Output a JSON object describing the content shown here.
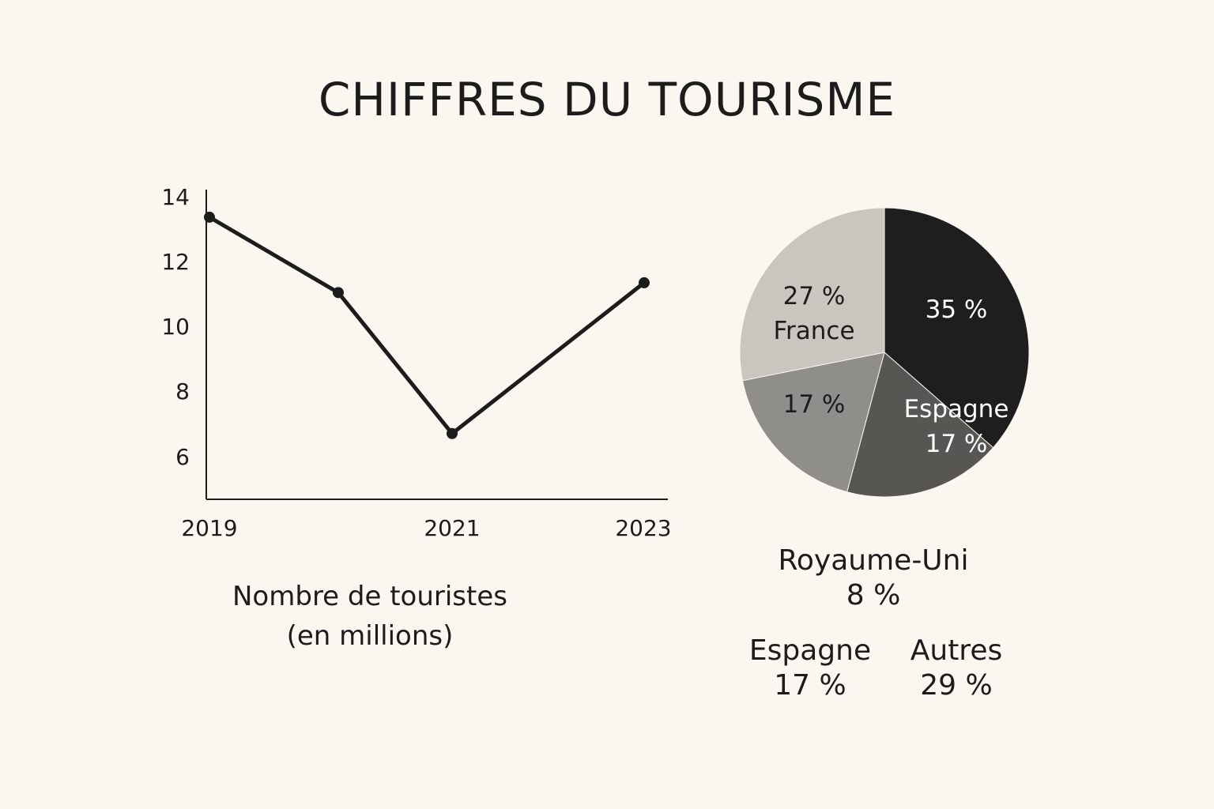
{
  "title": "CHIFFRES DU TOURISME",
  "chart_data": [
    {
      "type": "line",
      "x": [
        2019,
        2020,
        2021,
        2023
      ],
      "values": [
        13.4,
        11.1,
        6.8,
        11.4
      ],
      "x_tick_labels": [
        "2019",
        "2021",
        "2023"
      ],
      "y_ticks": [
        "14",
        "12",
        "10",
        "8",
        "6"
      ],
      "ylim": [
        4.8,
        14.2
      ],
      "caption_line1": "Nombre de touristes",
      "caption_line2": "(en millions)",
      "grid": false,
      "color": "#1c1c1c"
    },
    {
      "type": "pie",
      "slices": [
        {
          "label": "35 %",
          "value": 35,
          "color": "#1e1e1e"
        },
        {
          "name": "Espagne",
          "label": "17 %",
          "value": 17,
          "color": "#575653"
        },
        {
          "label": "17 %",
          "value": 17,
          "color": "#908e8a"
        },
        {
          "name": "France",
          "label": "27 %",
          "value": 27,
          "color": "#cac6bf"
        }
      ],
      "legend": [
        {
          "name": "Royaume-Uni",
          "value": "8 %"
        },
        {
          "name": "Espagne",
          "value": "17 %"
        },
        {
          "name": "Autres",
          "value": "29 %"
        }
      ]
    }
  ]
}
